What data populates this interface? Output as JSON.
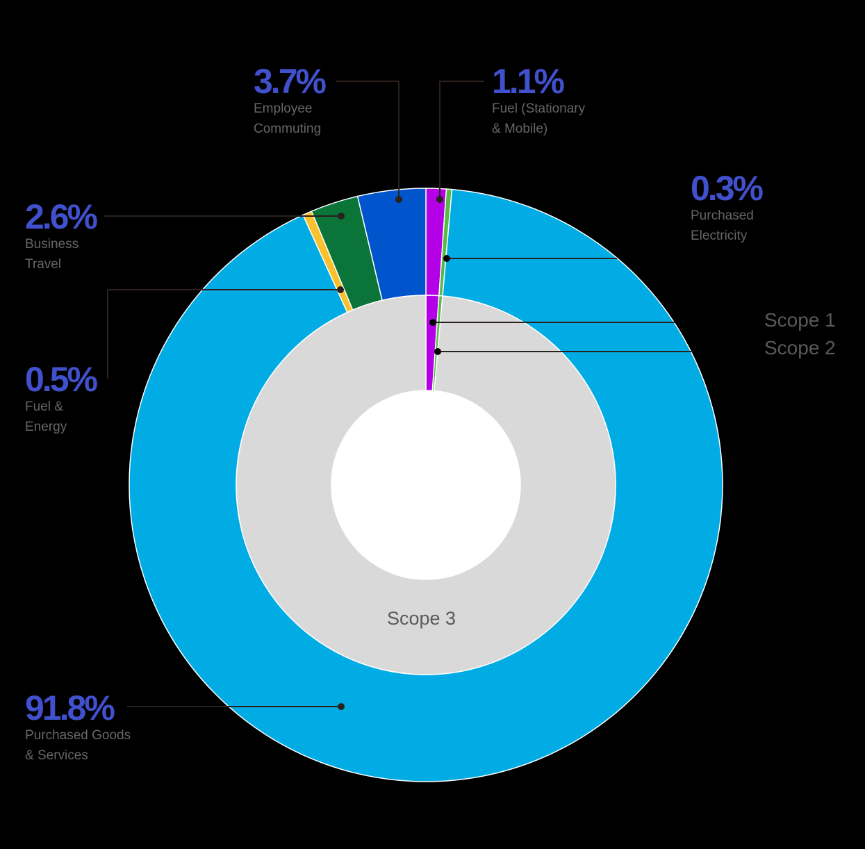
{
  "chart_data": {
    "type": "pie",
    "subtype": "nested-donut",
    "title": "",
    "outer_ring": {
      "categories": [
        "Fuel (Stationary & Mobile)",
        "Purchased Electricity",
        "Purchased Goods & Services",
        "Fuel & Energy",
        "Business Travel",
        "Employee Commuting"
      ],
      "values": [
        1.1,
        0.3,
        91.8,
        0.5,
        2.6,
        3.7
      ],
      "colors": [
        "#b300e6",
        "#55bb44",
        "#00ace3",
        "#fbc02d",
        "#0b7438",
        "#0055cc"
      ]
    },
    "inner_ring": {
      "categories": [
        "Scope 1",
        "Scope 2",
        "Scope 3"
      ],
      "values": [
        1.1,
        0.3,
        98.6
      ],
      "colors": [
        "#b300e6",
        "#55bb44",
        "#d9d9d9"
      ]
    },
    "labels": [
      {
        "pct": "3.7%",
        "text": "Employee\nCommuting"
      },
      {
        "pct": "1.1%",
        "text": "Fuel (Stationary\n& Mobile)"
      },
      {
        "pct": "0.3%",
        "text": "Purchased\nElectricity"
      },
      {
        "pct": "2.6%",
        "text": "Business\nTravel"
      },
      {
        "pct": "0.5%",
        "text": "Fuel &\nEnergy"
      },
      {
        "pct": "91.8%",
        "text": "Purchased Goods\n& Services"
      }
    ],
    "scope_labels": [
      "Scope 1",
      "Scope 2",
      "Scope 3"
    ],
    "legend": "none",
    "grid": false
  },
  "labels": {
    "employee_commuting": {
      "pct": "3.7%",
      "text": "Employee\nCommuting"
    },
    "fuel_stationary": {
      "pct": "1.1%",
      "text": "Fuel (Stationary\n& Mobile)"
    },
    "purchased_electricity": {
      "pct": "0.3%",
      "text": "Purchased\nElectricity"
    },
    "business_travel": {
      "pct": "2.6%",
      "text": "Business\nTravel"
    },
    "fuel_energy": {
      "pct": "0.5%",
      "text": "Fuel &\nEnergy"
    },
    "purchased_goods": {
      "pct": "91.8%",
      "text": "Purchased Goods\n& Services"
    }
  },
  "scopes": {
    "scope1": "Scope 1",
    "scope2": "Scope 2",
    "scope3": "Scope 3"
  }
}
